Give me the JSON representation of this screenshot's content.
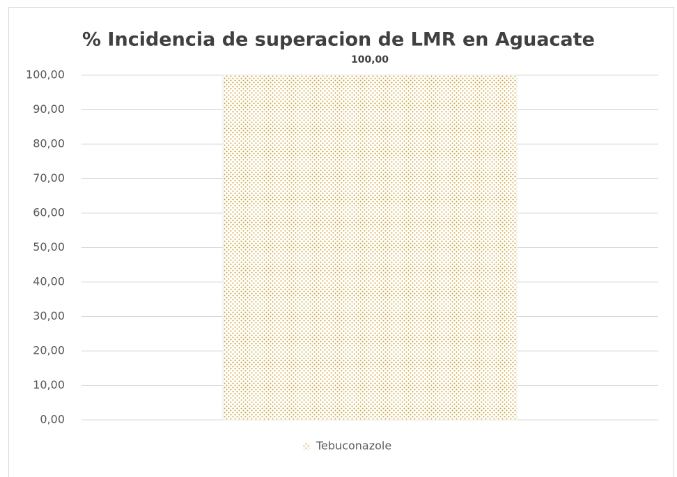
{
  "chart_data": {
    "type": "bar",
    "title": "% Incidencia de superacion de LMR en Aguacate",
    "categories": [
      null
    ],
    "series": [
      {
        "name": "Tebuconazole",
        "color": "#c9a032",
        "values": [
          100
        ],
        "value_labels": [
          "100,00"
        ]
      }
    ],
    "ylim": [
      0,
      100
    ],
    "yticks": [
      {
        "value": 0,
        "label": "0,00"
      },
      {
        "value": 10,
        "label": "10,00"
      },
      {
        "value": 20,
        "label": "20,00"
      },
      {
        "value": 30,
        "label": "30,00"
      },
      {
        "value": 40,
        "label": "40,00"
      },
      {
        "value": 50,
        "label": "50,00"
      },
      {
        "value": 60,
        "label": "60,00"
      },
      {
        "value": 70,
        "label": "70,00"
      },
      {
        "value": 80,
        "label": "80,00"
      },
      {
        "value": 90,
        "label": "90,00"
      },
      {
        "value": 100,
        "label": "100,00"
      }
    ],
    "grid": true,
    "legend": "bottom"
  }
}
